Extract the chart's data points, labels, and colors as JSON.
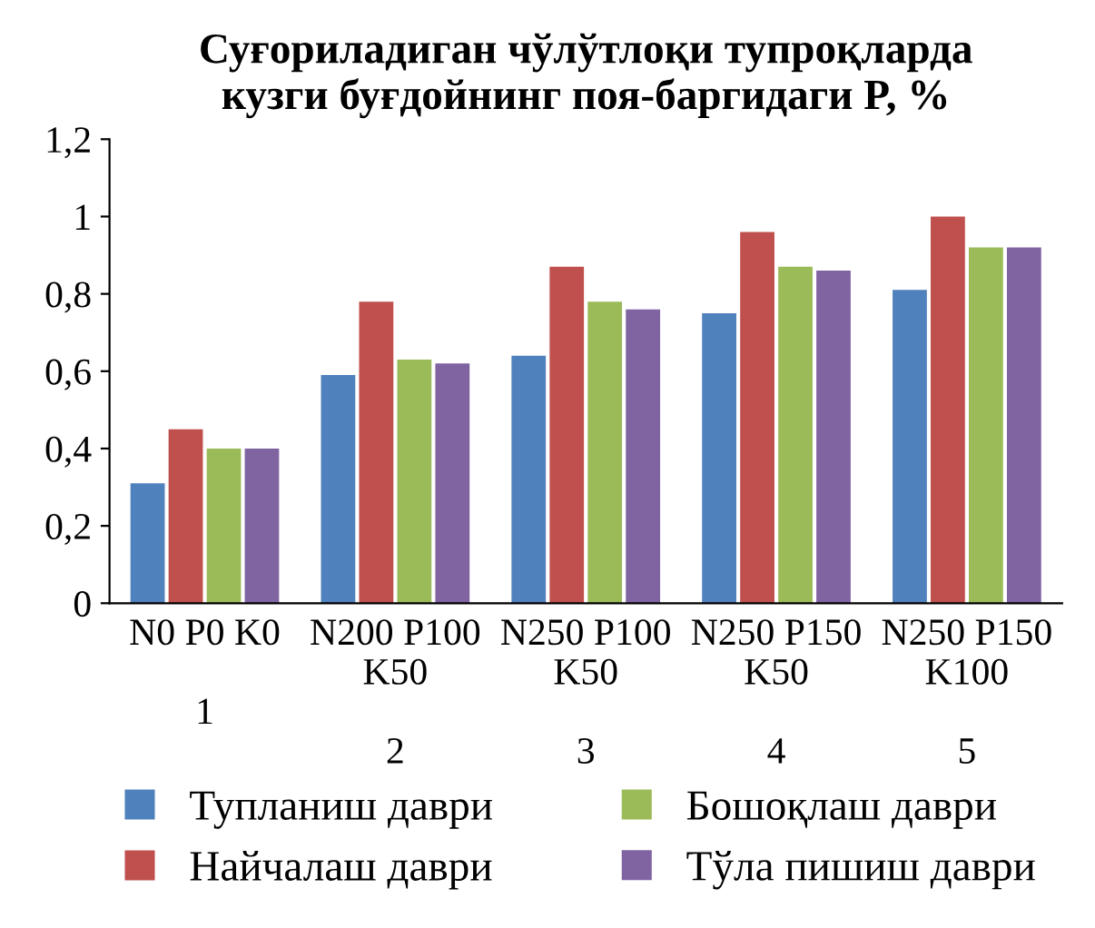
{
  "chart_data": {
    "type": "bar",
    "title": "Суғориладиган чўлўтлоқи тупроқларда\nкузги буғдойнинг поя-баргидаги P, %",
    "categories": [
      "N0 P0 K0\n\n1",
      "N200 P100\nK50\n\n2",
      "N250 P100\nK50\n\n3",
      "N250 P150\nK50\n\n4",
      "N250 P150\nK100\n\n5"
    ],
    "series": [
      {
        "name": "Тупланиш даври",
        "color": "#4f81bd",
        "values": [
          0.31,
          0.59,
          0.64,
          0.75,
          0.81
        ]
      },
      {
        "name": "Найчалаш даври",
        "color": "#c0504d",
        "values": [
          0.45,
          0.78,
          0.87,
          0.96,
          1.0
        ]
      },
      {
        "name": "Бошоқлаш даври",
        "color": "#9bbb59",
        "values": [
          0.4,
          0.63,
          0.78,
          0.87,
          0.92
        ]
      },
      {
        "name": "Тўла пишиш даври",
        "color": "#8064a2",
        "values": [
          0.4,
          0.62,
          0.76,
          0.86,
          0.92
        ]
      }
    ],
    "ylim": [
      0,
      1.2
    ],
    "yticks": [
      {
        "value": 0,
        "label": "0"
      },
      {
        "value": 0.2,
        "label": "0,2"
      },
      {
        "value": 0.4,
        "label": "0,4"
      },
      {
        "value": 0.6,
        "label": "0,6"
      },
      {
        "value": 0.8,
        "label": "0,8"
      },
      {
        "value": 1,
        "label": "1"
      },
      {
        "value": 1.2,
        "label": "1,2"
      }
    ],
    "grid": false,
    "legend": "bottom"
  }
}
